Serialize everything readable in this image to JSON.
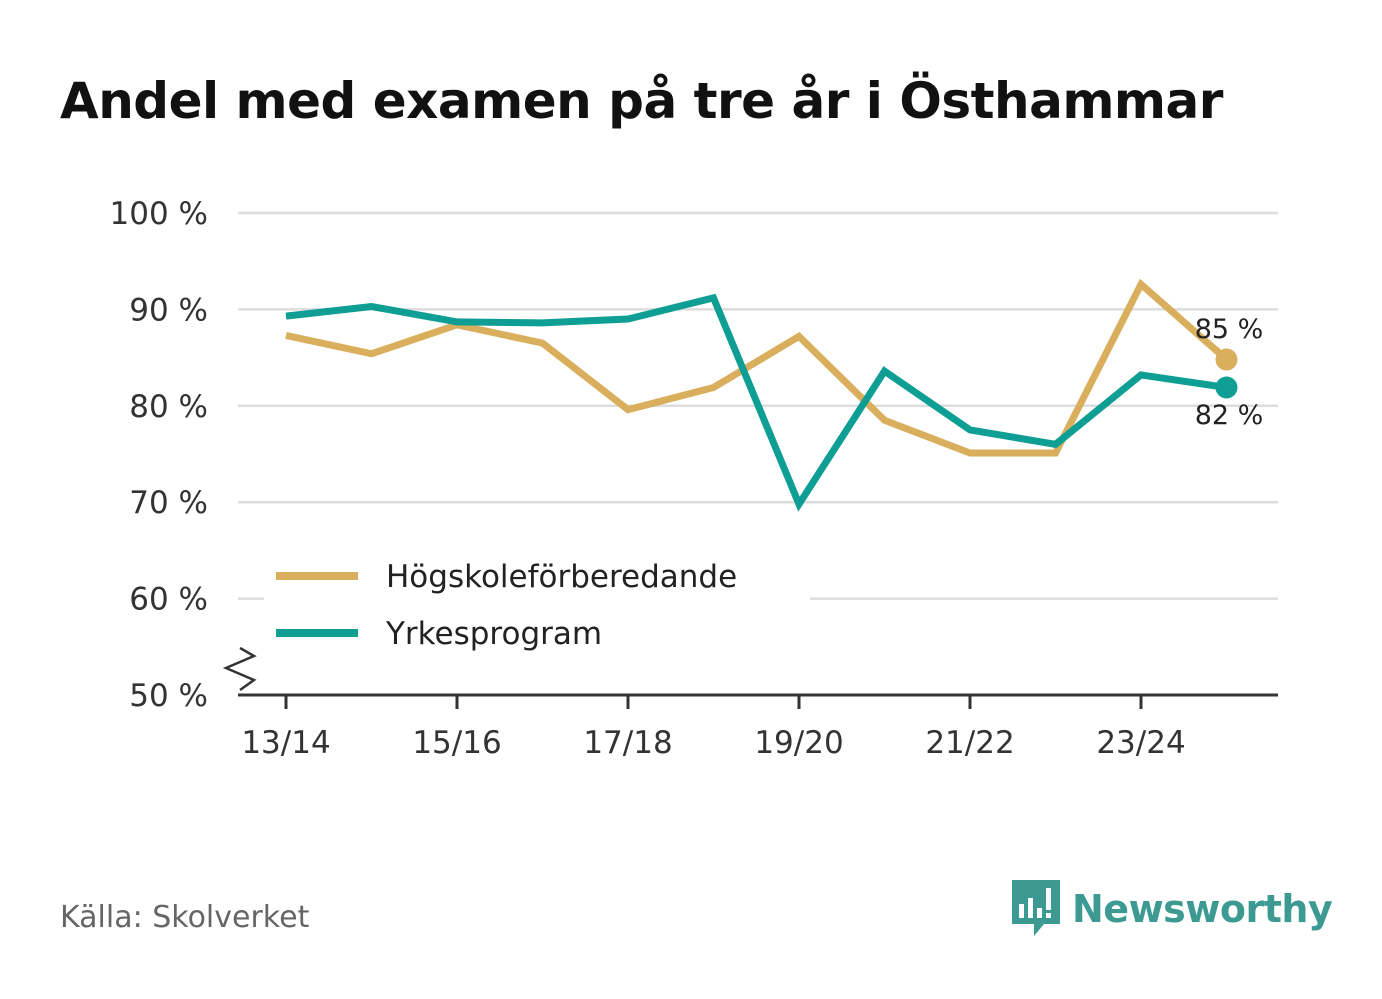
{
  "chart_data": {
    "type": "line",
    "title": "Andel med examen på tre år i Östhammar",
    "xlabel": "",
    "ylabel": "",
    "categories": [
      "13/14",
      "14/15",
      "15/16",
      "16/17",
      "17/18",
      "18/19",
      "19/20",
      "20/21",
      "21/22",
      "22/23",
      "23/24",
      "24/25"
    ],
    "x_tick_labels": [
      "13/14",
      "15/16",
      "17/18",
      "19/20",
      "21/22",
      "23/24"
    ],
    "y_tick_labels": [
      "100 %",
      "90 %",
      "80 %",
      "70 %",
      "60 %",
      "50 %"
    ],
    "ylim": [
      50,
      100
    ],
    "grid": true,
    "legend_position": "bottom-left",
    "series": [
      {
        "name": "Högskoleförberedande",
        "color": "#d9ae5c",
        "values": [
          87.3,
          85.4,
          88.4,
          86.5,
          79.6,
          81.9,
          87.2,
          78.5,
          75.1,
          75.1,
          92.6,
          84.8
        ],
        "end_label": "85 %"
      },
      {
        "name": "Yrkesprogram",
        "color": "#0e9e94",
        "values": [
          89.3,
          90.3,
          88.7,
          88.6,
          89.0,
          91.2,
          69.8,
          83.6,
          77.5,
          76.0,
          83.2,
          81.9
        ],
        "end_label": "82 %"
      }
    ]
  },
  "source": "Källa: Skolverket",
  "logo": {
    "text": "Newsworthy",
    "icon": "newsworthy-chart-bubble-icon",
    "color": "#3d9a92"
  }
}
